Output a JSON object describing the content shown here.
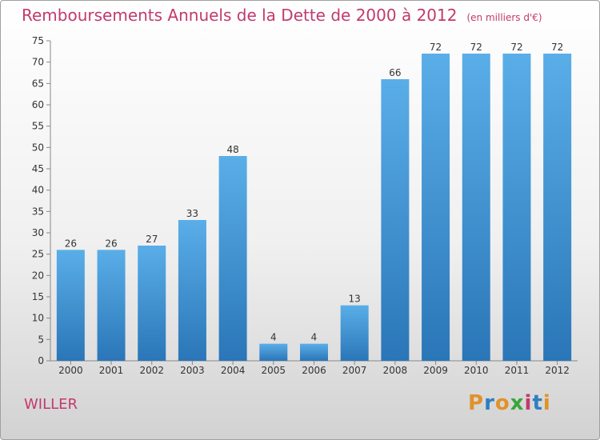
{
  "header": {
    "title": "Remboursements Annuels de la Dette de 2000 à 2012",
    "unit": "(en milliers d'€)"
  },
  "footer": {
    "commune": "WILLER",
    "logo": {
      "letters": [
        "P",
        "r",
        "o",
        "x",
        "i",
        "t",
        "i"
      ],
      "colors": [
        "#e0922a",
        "#2e7fc0",
        "#e0922a",
        "#3aa53a",
        "#c23a6e",
        "#2e7fc0",
        "#e0922a"
      ]
    }
  },
  "colors": {
    "title": "#c23a6e",
    "bar_top": "#5aaee8",
    "bar_bottom": "#2a76b8"
  },
  "chart_data": {
    "type": "bar",
    "title": "Remboursements Annuels de la Dette de 2000 à 2012",
    "xlabel": "",
    "ylabel": "",
    "categories": [
      "2000",
      "2001",
      "2002",
      "2003",
      "2004",
      "2005",
      "2006",
      "2007",
      "2008",
      "2009",
      "2010",
      "2011",
      "2012"
    ],
    "values": [
      26,
      26,
      27,
      33,
      48,
      4,
      4,
      13,
      66,
      72,
      72,
      72,
      72
    ],
    "ylim": [
      0,
      75
    ],
    "yticks": [
      0,
      5,
      10,
      15,
      20,
      25,
      30,
      35,
      40,
      45,
      50,
      55,
      60,
      65,
      70,
      75
    ],
    "grid": false,
    "legend": "none"
  }
}
